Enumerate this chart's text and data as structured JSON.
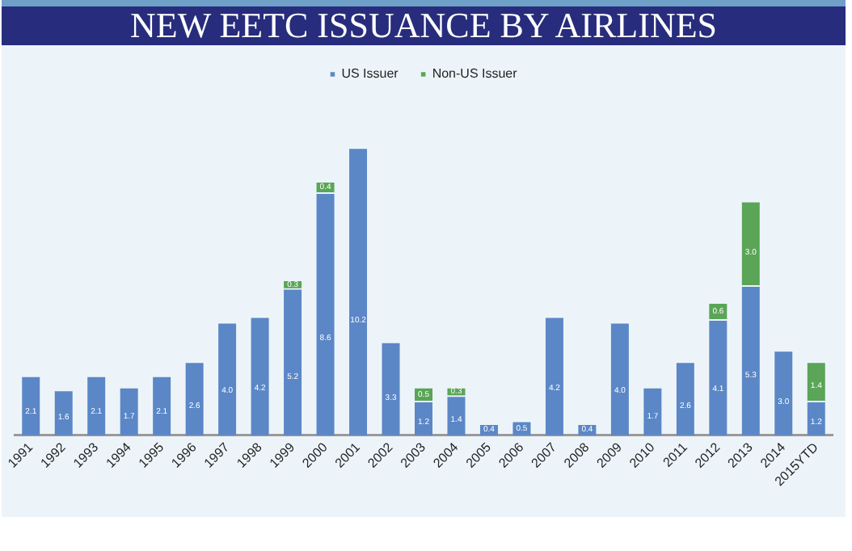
{
  "chart_data": {
    "type": "bar",
    "title": "NEW EETC ISSUANCE BY AIRLINES",
    "stacked": true,
    "legend": "top",
    "grid": false,
    "categories": [
      "1991",
      "1992",
      "1993",
      "1994",
      "1995",
      "1996",
      "1997",
      "1998",
      "1999",
      "2000",
      "2001",
      "2002",
      "2003",
      "2004",
      "2005",
      "2006",
      "2007",
      "2008",
      "2009",
      "2010",
      "2011",
      "2012",
      "2013",
      "2014",
      "2015YTD"
    ],
    "series": [
      {
        "name": "US Issuer",
        "color": "#5b87c7",
        "values": [
          2.1,
          1.6,
          2.1,
          1.7,
          2.1,
          2.6,
          4.0,
          4.2,
          5.2,
          8.6,
          10.2,
          3.3,
          1.2,
          1.4,
          0.4,
          0.5,
          4.2,
          0.4,
          4.0,
          1.7,
          2.6,
          4.1,
          5.3,
          3.0,
          1.2
        ],
        "value_labels": [
          "2.1",
          "1.6",
          "2.1",
          "1.7",
          "2.1",
          "2.6",
          "4.0",
          "4.2",
          "5.2",
          "8.6",
          "10.2",
          "3.3",
          "1.2",
          "1.4",
          "0.4",
          "0.5",
          "4.2",
          "0.4",
          "4.0",
          "1.7",
          "2.6",
          "4.1",
          "5.3",
          "3.0",
          "1.2"
        ]
      },
      {
        "name": "Non-US Issuer",
        "color": "#5aa557",
        "values": [
          null,
          null,
          null,
          null,
          null,
          null,
          null,
          null,
          0.3,
          0.4,
          null,
          null,
          0.5,
          0.3,
          null,
          null,
          null,
          null,
          null,
          null,
          null,
          0.6,
          3.0,
          null,
          1.4
        ],
        "value_labels": [
          null,
          null,
          null,
          null,
          null,
          null,
          null,
          null,
          "0.3",
          "0.4",
          null,
          null,
          "0.5",
          "0.3",
          null,
          null,
          null,
          null,
          null,
          null,
          null,
          "0.6",
          "3.0",
          null,
          "1.4"
        ]
      }
    ]
  }
}
